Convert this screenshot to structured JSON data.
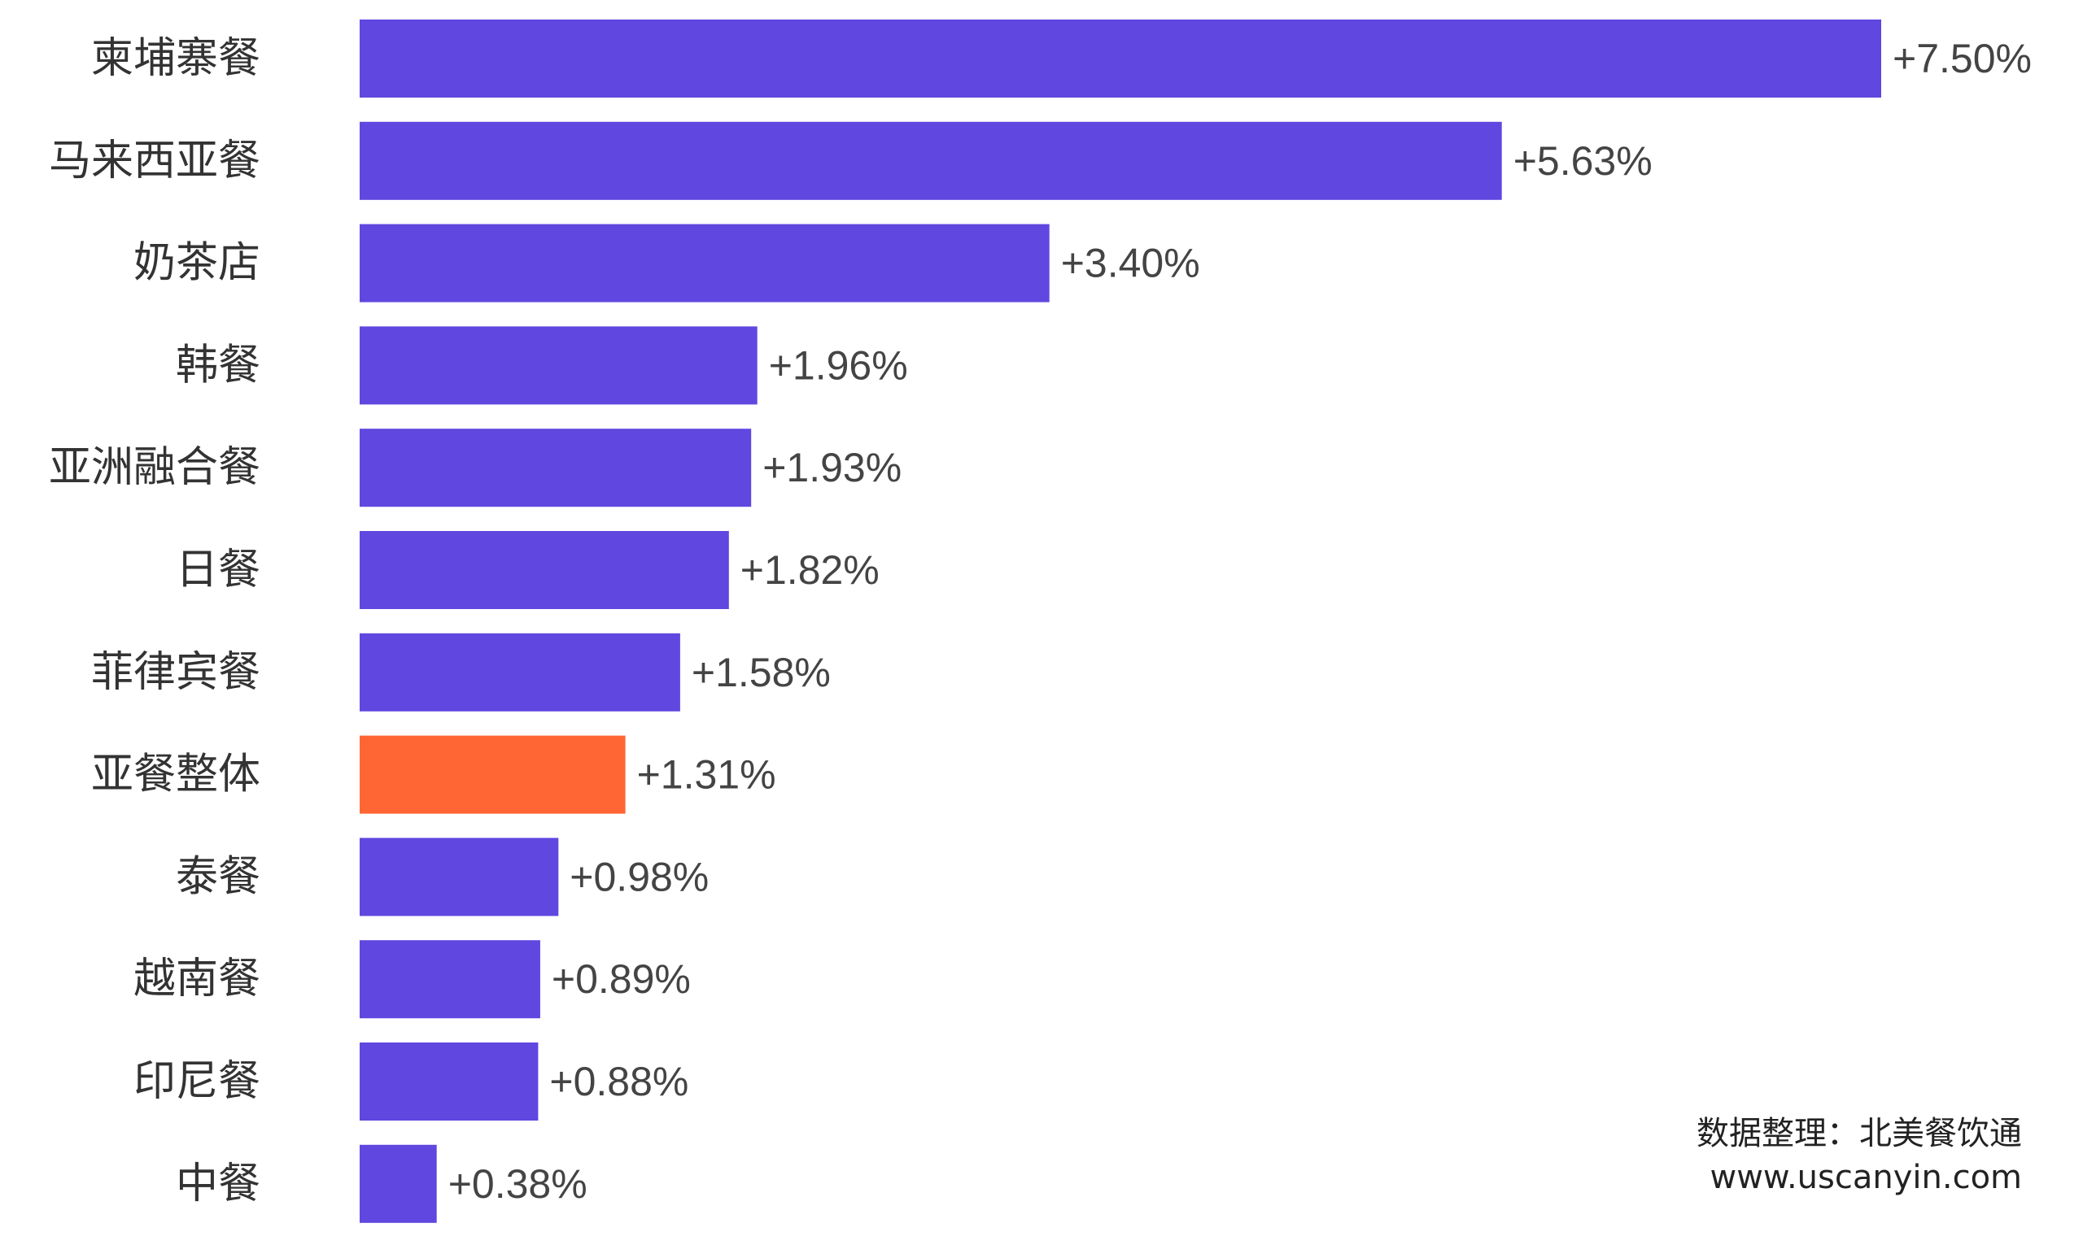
{
  "chart_data": {
    "type": "bar",
    "orientation": "horizontal",
    "categories": [
      "柬埔寨餐",
      "马来西亚餐",
      "奶茶店",
      "韩餐",
      "亚洲融合餐",
      "日餐",
      "菲律宾餐",
      "亚餐整体",
      "泰餐",
      "越南餐",
      "印尼餐",
      "中餐"
    ],
    "values": [
      7.5,
      5.63,
      3.4,
      1.96,
      1.93,
      1.82,
      1.58,
      1.31,
      0.98,
      0.89,
      0.88,
      0.38
    ],
    "value_labels": [
      "+7.50%",
      "+5.63%",
      "+3.40%",
      "+1.96%",
      "+1.93%",
      "+1.82%",
      "+1.58%",
      "+1.31%",
      "+0.98%",
      "+0.89%",
      "+0.88%",
      "+0.38%"
    ],
    "highlight_category": "亚餐整体",
    "colors": {
      "bar": "#5F47E0",
      "highlight": "#FF6633",
      "category_text": "#333333",
      "value_text": "#444444"
    },
    "xlim": [
      0,
      7.5
    ],
    "grid": false,
    "legend": "none"
  },
  "credit": {
    "source": "数据整理：北美餐饮通",
    "website": "www.uscanyin.com"
  }
}
